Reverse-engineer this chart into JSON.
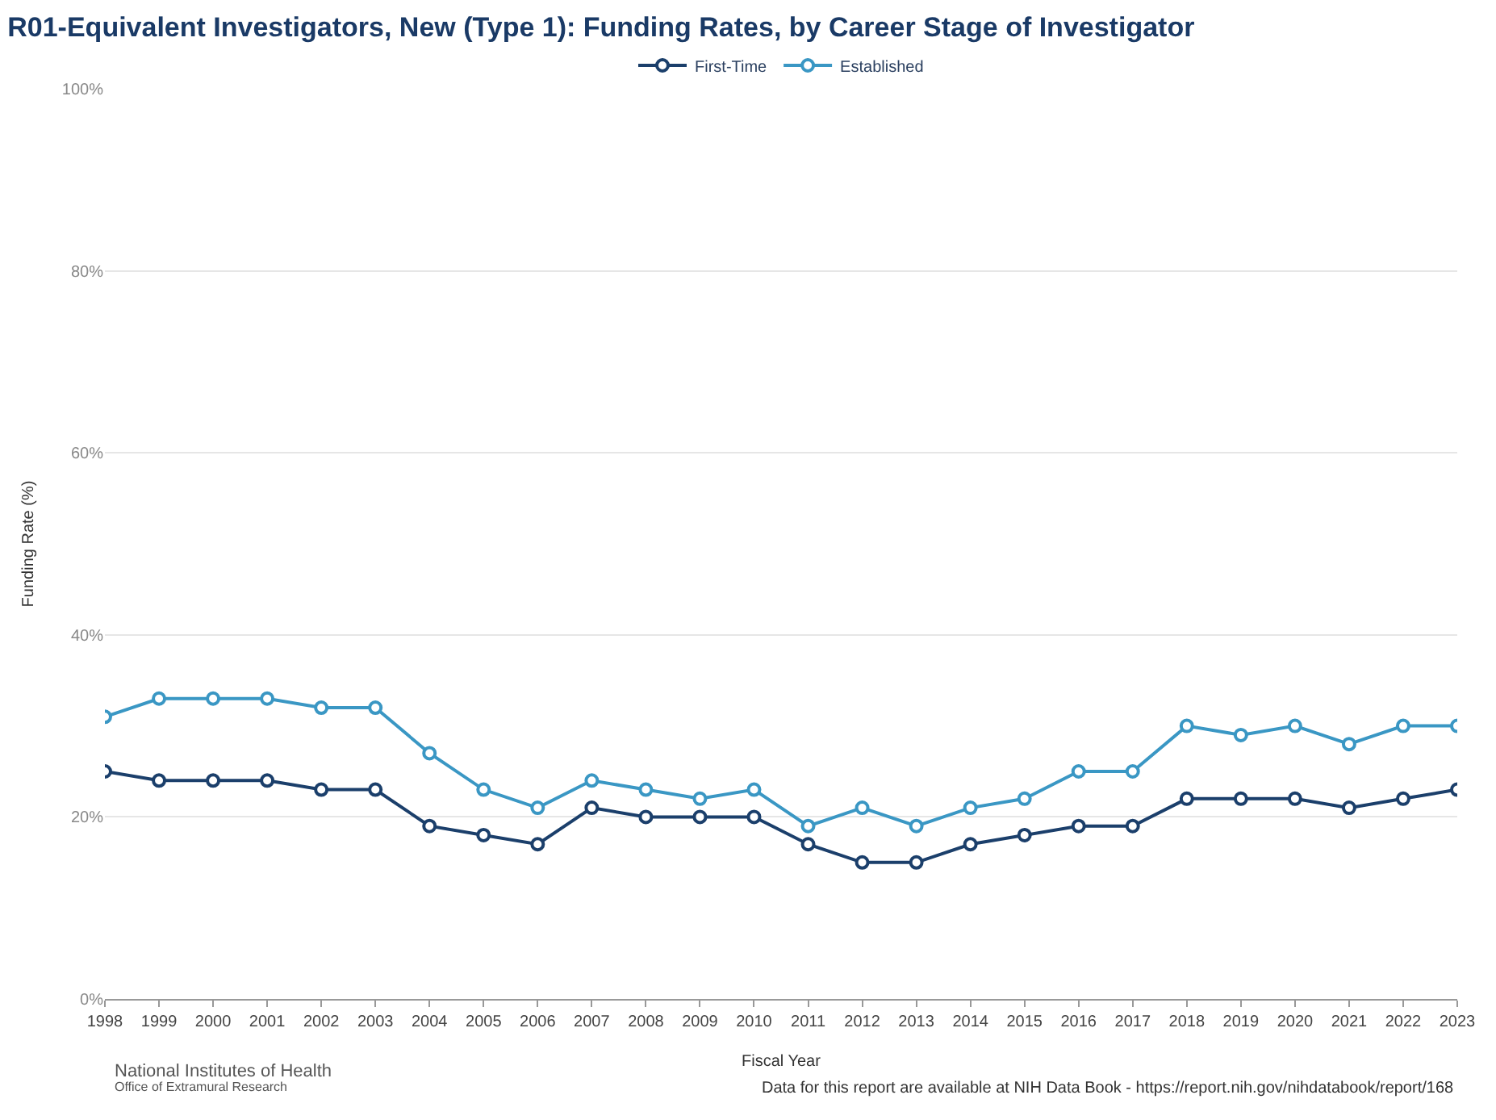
{
  "chart_data": {
    "type": "line",
    "title": "R01-Equivalent Investigators, New (Type 1): Funding Rates, by Career Stage of Investigator",
    "xlabel": "Fiscal Year",
    "ylabel": "Funding Rate (%)",
    "x": [
      1998,
      1999,
      2000,
      2001,
      2002,
      2003,
      2004,
      2005,
      2006,
      2007,
      2008,
      2009,
      2010,
      2011,
      2012,
      2013,
      2014,
      2015,
      2016,
      2017,
      2018,
      2019,
      2020,
      2021,
      2022,
      2023
    ],
    "series": [
      {
        "name": "First-Time",
        "color": "#1b3f6b",
        "values": [
          25,
          24,
          24,
          24,
          23,
          23,
          19,
          18,
          17,
          21,
          20,
          20,
          20,
          17,
          15,
          15,
          17,
          18,
          19,
          19,
          22,
          22,
          22,
          21,
          22,
          23
        ]
      },
      {
        "name": "Established",
        "color": "#3a97c4",
        "values": [
          31,
          33,
          33,
          33,
          32,
          32,
          27,
          23,
          21,
          24,
          23,
          22,
          23,
          19,
          21,
          19,
          21,
          22,
          25,
          25,
          30,
          29,
          30,
          28,
          30,
          30
        ]
      }
    ],
    "xlim": [
      1998,
      2023
    ],
    "xticks": [
      1998,
      1999,
      2000,
      2001,
      2002,
      2003,
      2004,
      2005,
      2006,
      2007,
      2008,
      2009,
      2010,
      2011,
      2012,
      2013,
      2014,
      2015,
      2016,
      2017,
      2018,
      2019,
      2020,
      2021,
      2022,
      2023
    ],
    "ylim": [
      0,
      100
    ],
    "yticks": [
      {
        "value": 0,
        "label": "0%"
      },
      {
        "value": 20,
        "label": "20%"
      },
      {
        "value": 40,
        "label": "40%"
      },
      {
        "value": 60,
        "label": "60%"
      },
      {
        "value": 80,
        "label": "80%"
      },
      {
        "value": 100,
        "label": "100%"
      }
    ],
    "grid": "y",
    "legend": "top",
    "marker": "circle",
    "line_style": "solid",
    "annotations": [
      "National Institutes of Health",
      "Office of Extramural Research",
      "Data for this report are available at NIH Data Book - https://report.nih.gov/nihdatabook/report/168"
    ]
  }
}
